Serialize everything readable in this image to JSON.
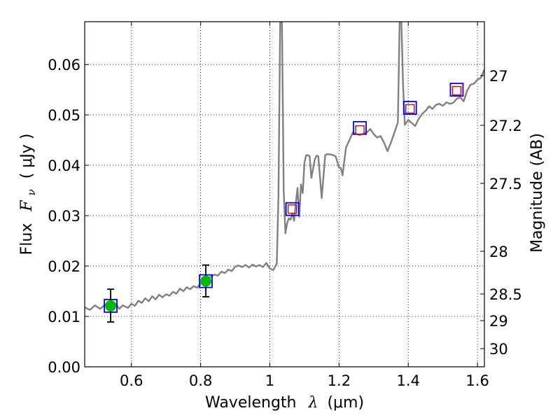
{
  "chart_data": {
    "type": "line",
    "title": "",
    "xlabel": "Wavelength",
    "xlabel_symbol": "λ",
    "xlabel_unit": "(μm)",
    "ylabel": "Flux",
    "ylabel_symbol": "F",
    "ylabel_subscript": "ν",
    "ylabel_unit": "( μJy )",
    "y2label": "Magnitude (AB)",
    "xlim": [
      0.465,
      1.62
    ],
    "ylim": [
      0.0,
      0.0685
    ],
    "grid": true,
    "grid_style": "dotted",
    "x_ticks": [
      {
        "value": 0.6,
        "label": "0.6"
      },
      {
        "value": 0.8,
        "label": "0.8"
      },
      {
        "value": 1.0,
        "label": "1"
      },
      {
        "value": 1.2,
        "label": "1.2"
      },
      {
        "value": 1.4,
        "label": "1.4"
      },
      {
        "value": 1.6,
        "label": "1.6"
      }
    ],
    "y_ticks": [
      {
        "value": 0.0,
        "label": "0.00"
      },
      {
        "value": 0.01,
        "label": "0.01"
      },
      {
        "value": 0.02,
        "label": "0.02"
      },
      {
        "value": 0.03,
        "label": "0.03"
      },
      {
        "value": 0.04,
        "label": "0.04"
      },
      {
        "value": 0.05,
        "label": "0.05"
      },
      {
        "value": 0.06,
        "label": "0.06"
      }
    ],
    "y2_ticks": [
      {
        "label": "27"
      },
      {
        "label": "27.2"
      },
      {
        "label": "27.5"
      },
      {
        "label": "28"
      },
      {
        "label": "28.5"
      },
      {
        "label": "29"
      },
      {
        "label": "30"
      }
    ],
    "colors": {
      "spectrum": "#808080",
      "observed_point": "#00bb00",
      "model_box": "#0000ff",
      "predicted_box": "#dd0000",
      "error_bar": "#000000",
      "grid": "#000000"
    },
    "series": [
      {
        "role": "model-spectrum",
        "style": "line",
        "x": [
          0.465,
          0.48,
          0.495,
          0.51,
          0.525,
          0.54,
          0.555,
          0.565,
          0.575,
          0.59,
          0.6,
          0.61,
          0.62,
          0.63,
          0.64,
          0.65,
          0.66,
          0.67,
          0.68,
          0.69,
          0.7,
          0.71,
          0.72,
          0.73,
          0.74,
          0.75,
          0.76,
          0.77,
          0.78,
          0.79,
          0.8,
          0.81,
          0.82,
          0.83,
          0.84,
          0.85,
          0.86,
          0.87,
          0.88,
          0.89,
          0.9,
          0.91,
          0.92,
          0.93,
          0.94,
          0.95,
          0.96,
          0.97,
          0.98,
          0.99,
          1.0,
          1.01,
          1.02,
          1.025,
          1.03,
          1.035,
          1.04,
          1.045,
          1.05,
          1.055,
          1.06,
          1.065,
          1.07,
          1.075,
          1.08,
          1.085,
          1.09,
          1.095,
          1.1,
          1.105,
          1.11,
          1.115,
          1.12,
          1.13,
          1.135,
          1.14,
          1.15,
          1.16,
          1.165,
          1.17,
          1.18,
          1.19,
          1.2,
          1.205,
          1.21,
          1.22,
          1.23,
          1.24,
          1.25,
          1.26,
          1.27,
          1.28,
          1.29,
          1.3,
          1.31,
          1.32,
          1.33,
          1.34,
          1.35,
          1.36,
          1.37,
          1.375,
          1.38,
          1.385,
          1.39,
          1.4,
          1.41,
          1.42,
          1.43,
          1.44,
          1.45,
          1.46,
          1.47,
          1.48,
          1.49,
          1.5,
          1.51,
          1.52,
          1.53,
          1.54,
          1.55,
          1.56,
          1.57,
          1.58,
          1.59,
          1.6,
          1.61,
          1.62
        ],
        "y": [
          0.0118,
          0.0113,
          0.0122,
          0.0115,
          0.0124,
          0.0119,
          0.0125,
          0.0115,
          0.0122,
          0.0117,
          0.0125,
          0.0121,
          0.0131,
          0.0127,
          0.0136,
          0.013,
          0.014,
          0.0134,
          0.0143,
          0.0138,
          0.0144,
          0.0141,
          0.0149,
          0.0145,
          0.0155,
          0.015,
          0.0158,
          0.0154,
          0.016,
          0.0157,
          0.0166,
          0.017,
          0.0175,
          0.0179,
          0.0183,
          0.0181,
          0.0189,
          0.0186,
          0.0193,
          0.019,
          0.0199,
          0.0201,
          0.0198,
          0.0202,
          0.0197,
          0.0203,
          0.0199,
          0.0202,
          0.0198,
          0.0206,
          0.0195,
          0.0192,
          0.0205,
          0.034,
          0.0685,
          0.0685,
          0.035,
          0.0265,
          0.0285,
          0.0295,
          0.0292,
          0.0305,
          0.029,
          0.0325,
          0.0355,
          0.0298,
          0.0362,
          0.0345,
          0.0405,
          0.042,
          0.042,
          0.0418,
          0.0375,
          0.0412,
          0.0419,
          0.0418,
          0.0335,
          0.042,
          0.0422,
          0.0422,
          0.0421,
          0.0418,
          0.0395,
          0.0395,
          0.038,
          0.0435,
          0.045,
          0.0465,
          0.0462,
          0.046,
          0.0463,
          0.0465,
          0.0472,
          0.0462,
          0.0455,
          0.0458,
          0.0445,
          0.0428,
          0.0445,
          0.0465,
          0.0485,
          0.0685,
          0.0685,
          0.056,
          0.048,
          0.049,
          0.0484,
          0.0478,
          0.0492,
          0.0502,
          0.0508,
          0.0517,
          0.0512,
          0.052,
          0.0522,
          0.0518,
          0.0525,
          0.0522,
          0.0524,
          0.0532,
          0.0535,
          0.0527,
          0.0548,
          0.056,
          0.0562,
          0.057,
          0.0574,
          0.059
        ]
      },
      {
        "role": "model-photometry",
        "style": "open-square",
        "x": [
          0.54,
          0.815,
          1.065,
          1.26,
          1.405,
          1.54
        ],
        "y": [
          0.0121,
          0.017,
          0.0313,
          0.0474,
          0.0514,
          0.055
        ]
      },
      {
        "role": "predicted-photometry",
        "style": "open-square-small",
        "x": [
          1.065,
          1.26,
          1.405,
          1.54
        ],
        "y": [
          0.0313,
          0.047,
          0.0512,
          0.0548
        ]
      },
      {
        "role": "observed-photometry",
        "style": "filled-circle",
        "x": [
          0.54,
          0.815
        ],
        "y": [
          0.0121,
          0.017
        ],
        "yerr_low": [
          0.0089,
          0.0139
        ],
        "yerr_high": [
          0.0154,
          0.0202
        ]
      }
    ]
  }
}
